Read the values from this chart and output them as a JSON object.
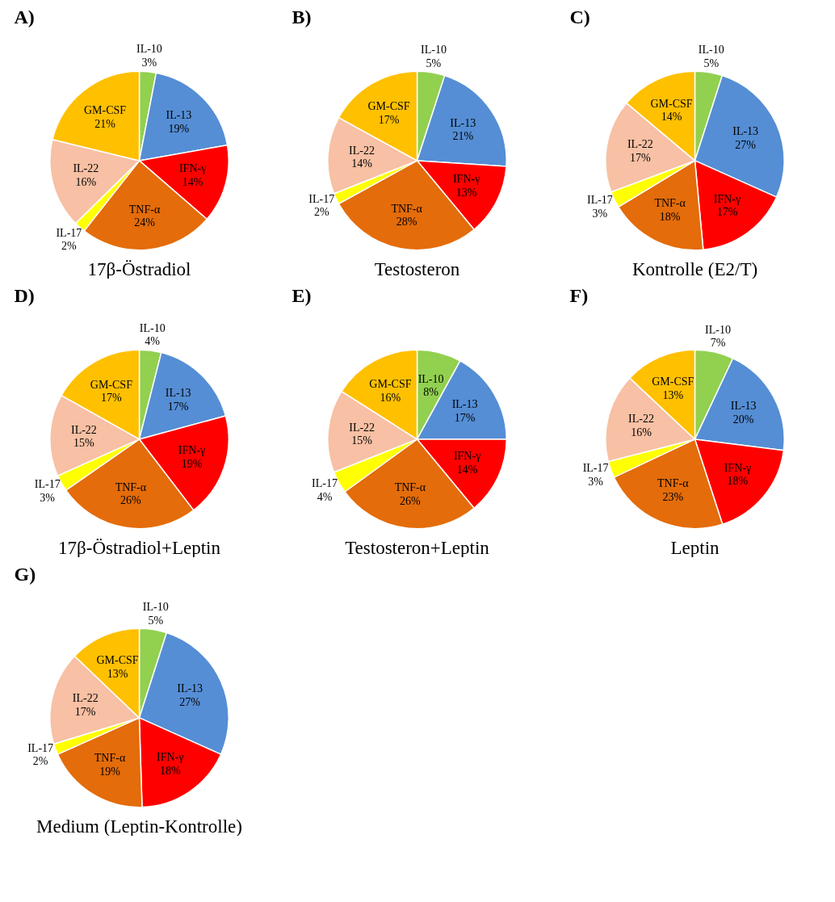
{
  "chart_data": [
    {
      "type": "pie",
      "title": "A)",
      "subtitle": "17β-Östradiol",
      "categories": [
        "IL-10",
        "IL-13",
        "IFN-γ",
        "TNF-α",
        "IL-17",
        "IL-22",
        "GM-CSF"
      ],
      "values": [
        3,
        19,
        14,
        24,
        2,
        16,
        21
      ],
      "value_labels": [
        "3%",
        "19%",
        "14%",
        "24%",
        "2%",
        "16%",
        "21%"
      ],
      "colors": [
        "#92d050",
        "#558ed5",
        "#ff0000",
        "#e46c0a",
        "#ffff00",
        "#f8c0a4",
        "#ffc000"
      ]
    },
    {
      "type": "pie",
      "title": "B)",
      "subtitle": "Testosteron",
      "categories": [
        "IL-10",
        "IL-13",
        "IFN-γ",
        "TNF-α",
        "IL-17",
        "IL-22",
        "GM-CSF"
      ],
      "values": [
        5,
        21,
        13,
        28,
        2,
        14,
        17
      ],
      "value_labels": [
        "5%",
        "21%",
        "13%",
        "28%",
        "2%",
        "14%",
        "17%"
      ],
      "colors": [
        "#92d050",
        "#558ed5",
        "#ff0000",
        "#e46c0a",
        "#ffff00",
        "#f8c0a4",
        "#ffc000"
      ]
    },
    {
      "type": "pie",
      "title": "C)",
      "subtitle": "Kontrolle (E2/T)",
      "categories": [
        "IL-10",
        "IL-13",
        "IFN-γ",
        "TNF-α",
        "IL-17",
        "IL-22",
        "GM-CSF"
      ],
      "values": [
        5,
        27,
        17,
        18,
        3,
        17,
        14
      ],
      "value_labels": [
        "5%",
        "27%",
        "17%",
        "18%",
        "3%",
        "17%",
        "14%"
      ],
      "colors": [
        "#92d050",
        "#558ed5",
        "#ff0000",
        "#e46c0a",
        "#ffff00",
        "#f8c0a4",
        "#ffc000"
      ]
    },
    {
      "type": "pie",
      "title": "D)",
      "subtitle": "17β-Östradiol+Leptin",
      "categories": [
        "IL-10",
        "IL-13",
        "IFN-γ",
        "TNF-α",
        "IL-17",
        "IL-22",
        "GM-CSF"
      ],
      "values": [
        4,
        17,
        19,
        26,
        3,
        15,
        17
      ],
      "value_labels": [
        "4%",
        "17%",
        "19%",
        "26%",
        "3%",
        "15%",
        "17%"
      ],
      "colors": [
        "#92d050",
        "#558ed5",
        "#ff0000",
        "#e46c0a",
        "#ffff00",
        "#f8c0a4",
        "#ffc000"
      ]
    },
    {
      "type": "pie",
      "title": "E)",
      "subtitle": "Testosteron+Leptin",
      "categories": [
        "IL-10",
        "IL-13",
        "IFN-γ",
        "TNF-α",
        "IL-17",
        "IL-22",
        "GM-CSF"
      ],
      "values": [
        8,
        17,
        14,
        26,
        4,
        15,
        16
      ],
      "value_labels": [
        "8%",
        "17%",
        "14%",
        "26%",
        "4%",
        "15%",
        "16%"
      ],
      "colors": [
        "#92d050",
        "#558ed5",
        "#ff0000",
        "#e46c0a",
        "#ffff00",
        "#f8c0a4",
        "#ffc000"
      ]
    },
    {
      "type": "pie",
      "title": "F)",
      "subtitle": "Leptin",
      "categories": [
        "IL-10",
        "IL-13",
        "IFN-γ",
        "TNF-α",
        "IL-17",
        "IL-22",
        "GM-CSF"
      ],
      "values": [
        7,
        20,
        18,
        23,
        3,
        16,
        13
      ],
      "value_labels": [
        "7%",
        "20%",
        "18%",
        "23%",
        "3%",
        "16%",
        "13%"
      ],
      "colors": [
        "#92d050",
        "#558ed5",
        "#ff0000",
        "#e46c0a",
        "#ffff00",
        "#f8c0a4",
        "#ffc000"
      ]
    },
    {
      "type": "pie",
      "title": "G)",
      "subtitle": "Medium (Leptin-Kontrolle)",
      "categories": [
        "IL-10",
        "IL-13",
        "IFN-γ",
        "TNF-α",
        "IL-17",
        "IL-22",
        "GM-CSF"
      ],
      "values": [
        5,
        27,
        18,
        19,
        2,
        17,
        13
      ],
      "value_labels": [
        "5%",
        "27%",
        "18%",
        "19%",
        "2%",
        "17%",
        "13%"
      ],
      "colors": [
        "#92d050",
        "#558ed5",
        "#ff0000",
        "#e46c0a",
        "#ffff00",
        "#f8c0a4",
        "#ffc000"
      ]
    }
  ]
}
